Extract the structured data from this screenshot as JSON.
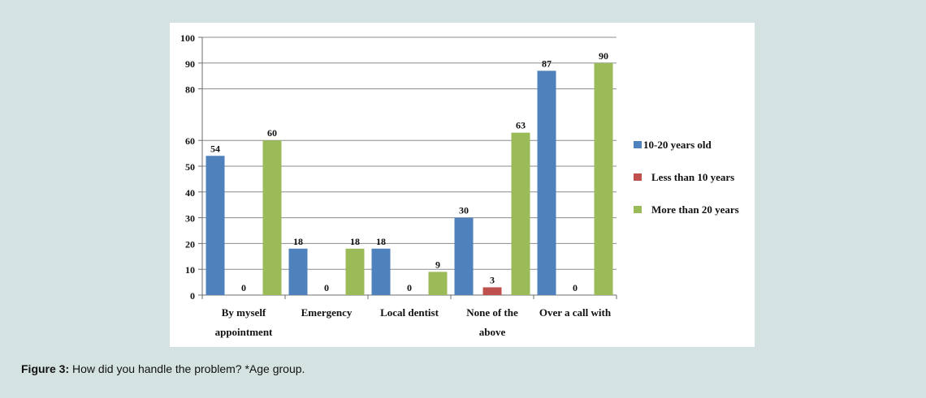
{
  "caption": {
    "label": "Figure 3:",
    "text": "How did you handle the problem? *Age group."
  },
  "chart_data": {
    "type": "bar",
    "title": "",
    "xlabel": "",
    "ylabel": "",
    "ylim": [
      0,
      100
    ],
    "yticks": [
      0,
      10,
      20,
      30,
      40,
      50,
      60,
      80,
      90,
      100
    ],
    "category_label_lines": [
      [
        "By myself",
        "appointment"
      ],
      [
        "Emergency",
        ""
      ],
      [
        "Local dentist",
        ""
      ],
      [
        "None of the",
        "above"
      ],
      [
        "Over a call with",
        ""
      ]
    ],
    "categories": [
      "By myself appointment",
      "Emergency",
      "Local dentist",
      "None of the above",
      "Over a call with"
    ],
    "series": [
      {
        "name": "10-20 years old",
        "color": "#4f81bd",
        "values": [
          54,
          18,
          18,
          30,
          87
        ]
      },
      {
        "name": "Less than 10 years",
        "color": "#c0504d",
        "values": [
          0,
          0,
          0,
          3,
          0
        ]
      },
      {
        "name": "More than 20 years",
        "color": "#9bbb59",
        "values": [
          60,
          18,
          9,
          63,
          90
        ]
      }
    ],
    "legend_position": "right",
    "grid": true
  }
}
